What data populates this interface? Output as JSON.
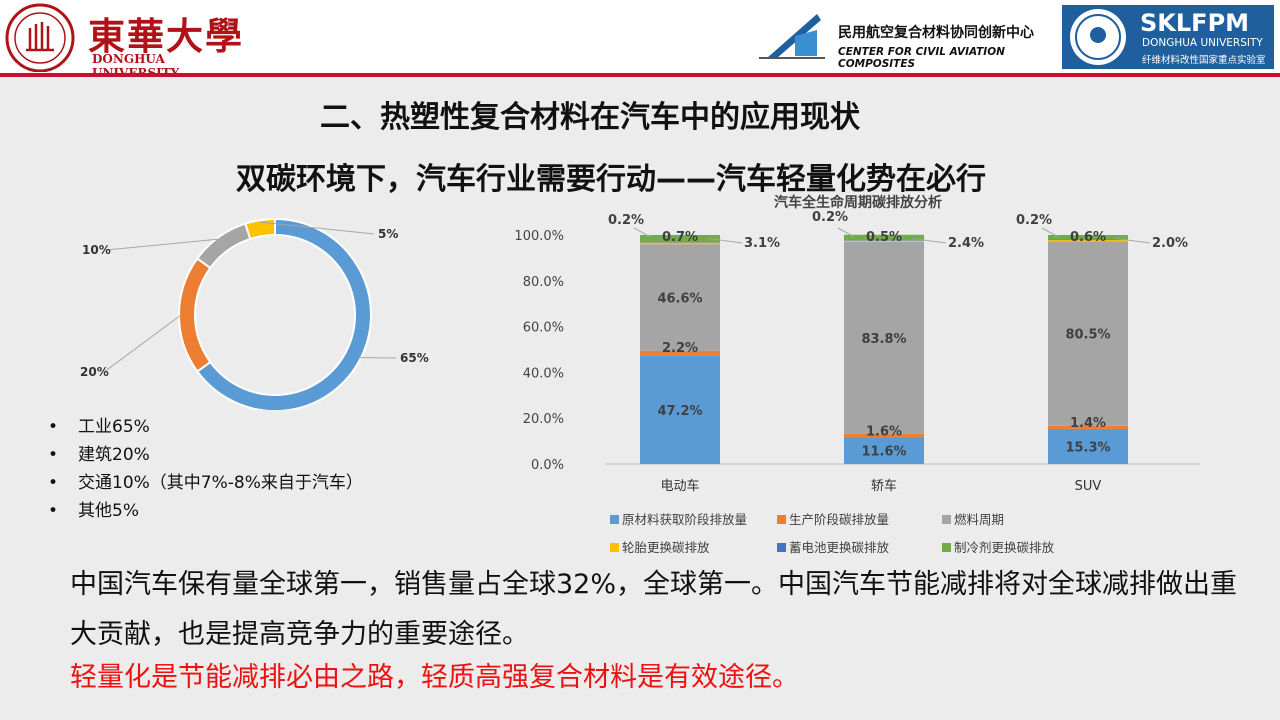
{
  "header": {
    "dhu_name_cn": "東華大學",
    "dhu_name_en": "DONGHUA UNIVERSITY",
    "center_name_cn": "民用航空复合材料协同创新中心",
    "center_name_en": "CENTER FOR CIVIL AVIATION COMPOSITES",
    "lab_name": "SKLFPM",
    "lab_sub_en": "DONGHUA UNIVERSITY",
    "lab_sub_cn": "纤维材料改性国家重点实验室",
    "accent_color": "#c8102e"
  },
  "title": "二、热塑性复合材料在汽车中的应用现状",
  "subtitle": "双碳环境下，汽车行业需要行动——汽车轻量化势在必行",
  "bullets": [
    "工业65%",
    "建筑20%",
    "交通10%（其中7%-8%来自于汽车）",
    "其他5%"
  ],
  "paragraph": "中国汽车保有量全球第一，销售量占全球32%，全球第一。中国汽车节能减排将对全球减排做出重大贡献，也是提高竞争力的重要途径。",
  "highlight": "轻量化是节能减排必由之路，轻质高强复合材料是有效途径。",
  "highlight_color": "#ee1111",
  "chart_data": [
    {
      "type": "pie",
      "donut": true,
      "labels": [
        "65%",
        "20%",
        "10%",
        "5%"
      ],
      "values": [
        65,
        20,
        10,
        5
      ],
      "colors": [
        "#5b9bd5",
        "#ed7d31",
        "#a5a5a5",
        "#ffc000"
      ]
    },
    {
      "type": "bar",
      "stacked": true,
      "percent": true,
      "title": "汽车全生命周期碳排放分析",
      "categories": [
        "电动车",
        "轿车",
        "SUV"
      ],
      "ylim": [
        0,
        100
      ],
      "yticks": [
        "0.0%",
        "20.0%",
        "40.0%",
        "60.0%",
        "80.0%",
        "100.0%"
      ],
      "grid": false,
      "legend_position": "bottom",
      "series": [
        {
          "name": "原材料获取阶段排放量",
          "color": "#5b9bd5",
          "values": [
            47.2,
            11.6,
            15.3
          ],
          "labels": [
            "47.2%",
            "11.6%",
            "15.3%"
          ]
        },
        {
          "name": "生产阶段碳排放量",
          "color": "#ed7d31",
          "values": [
            2.2,
            1.6,
            1.4
          ],
          "labels": [
            "2.2%",
            "1.6%",
            "1.4%"
          ]
        },
        {
          "name": "燃料周期",
          "color": "#a5a5a5",
          "values": [
            46.6,
            83.8,
            80.5
          ],
          "labels": [
            "46.6%",
            "83.8%",
            "80.5%"
          ]
        },
        {
          "name": "轮胎更换碳排放",
          "color": "#ffc000",
          "values": [
            0.7,
            0.5,
            0.6
          ],
          "labels": [
            "0.7%",
            "0.5%",
            "0.6%"
          ]
        },
        {
          "name": "蓄电池更换碳排放",
          "color": "#4472c4",
          "values": [
            0.2,
            0.2,
            0.2
          ],
          "labels": [
            "0.2%",
            "0.2%",
            "0.2%"
          ]
        },
        {
          "name": "制冷剂更换碳排放",
          "color": "#70ad47",
          "values": [
            3.1,
            2.4,
            2.0
          ],
          "labels": [
            "3.1%",
            "2.4%",
            "2.0%"
          ]
        }
      ]
    }
  ]
}
